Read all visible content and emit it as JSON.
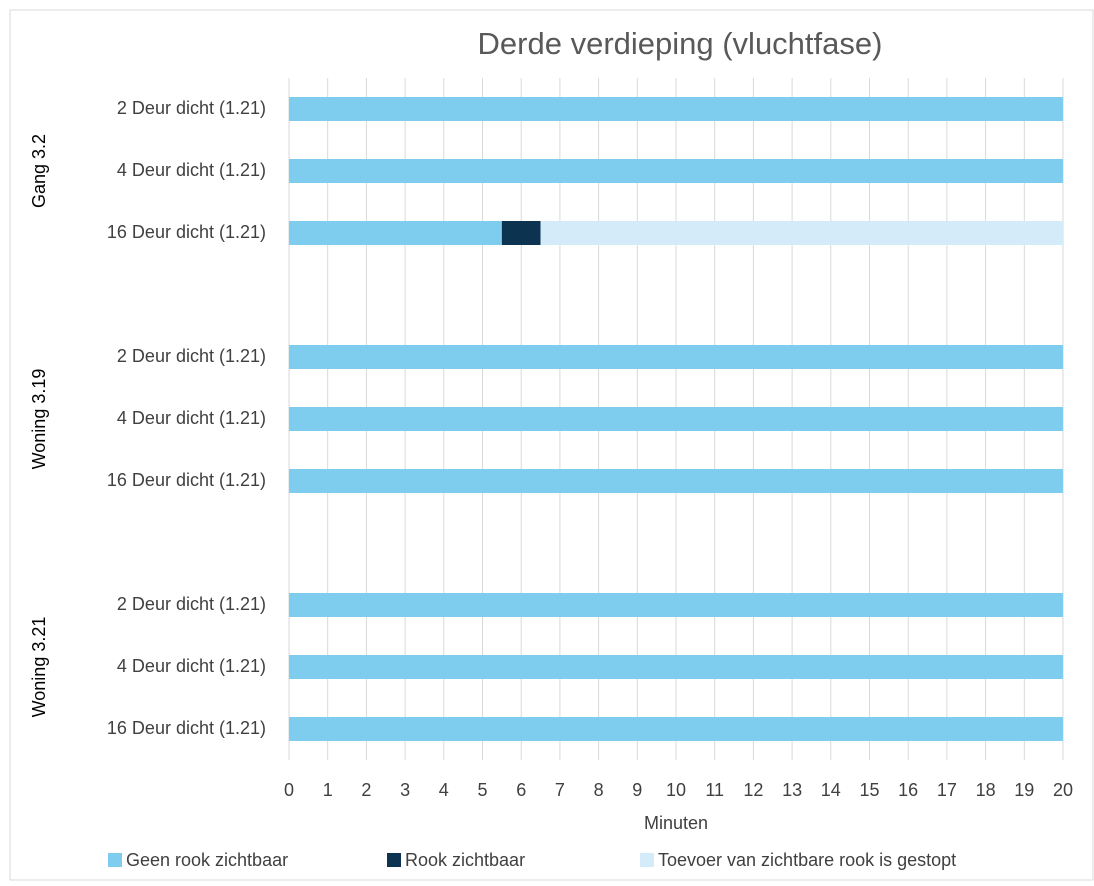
{
  "chart_data": {
    "type": "stacked-barh",
    "title": "Derde verdieping (vluchtfase)",
    "xlabel": "Minuten",
    "groups": [
      "Gang 3.2",
      "Woning 3.19",
      "Woning 3.21"
    ],
    "categories": [
      "2 Deur dicht (1.21)",
      "4 Deur dicht (1.21)",
      "16 Deur dicht (1.21)",
      null,
      "2 Deur dicht (1.21)",
      "4 Deur dicht (1.21)",
      "16 Deur dicht (1.21)",
      null,
      "2 Deur dicht (1.21)",
      "4 Deur dicht (1.21)",
      "16 Deur dicht (1.21)"
    ],
    "series": [
      {
        "name": "Geen rook zichtbaar",
        "color": "#7fcdee",
        "values": [
          20,
          20,
          5.5,
          null,
          20,
          20,
          20,
          null,
          20,
          20,
          20
        ]
      },
      {
        "name": "Rook zichtbaar",
        "color": "#0c3350",
        "values": [
          0,
          0,
          1,
          null,
          0,
          0,
          0,
          null,
          0,
          0,
          0
        ]
      },
      {
        "name": "Toevoer van zichtbare rook is gestopt",
        "color": "#d4ecf9",
        "values": [
          0,
          0,
          13.5,
          null,
          0,
          0,
          0,
          null,
          0,
          0,
          0
        ]
      }
    ],
    "xlim": [
      0,
      20
    ],
    "xticks": [
      0,
      1,
      2,
      3,
      4,
      5,
      6,
      7,
      8,
      9,
      10,
      11,
      12,
      13,
      14,
      15,
      16,
      17,
      18,
      19,
      20
    ],
    "grid": true,
    "legend": "bottom"
  }
}
